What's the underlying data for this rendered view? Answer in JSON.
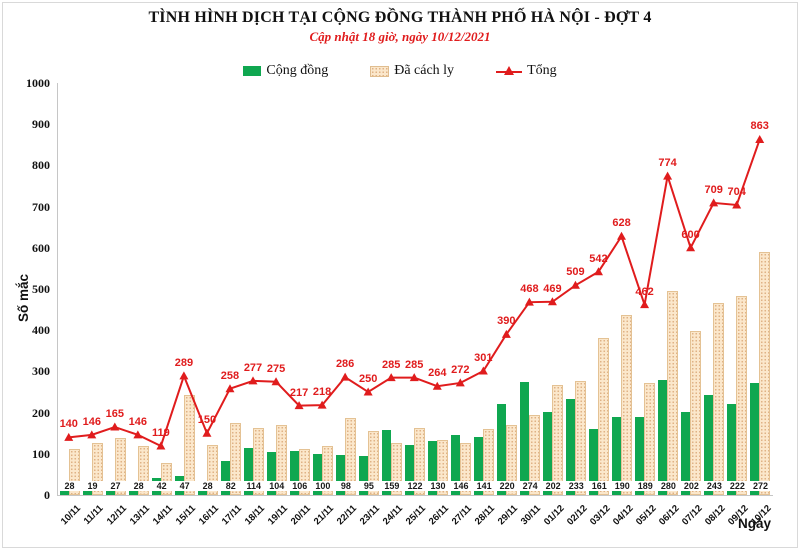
{
  "header": {
    "title": "TÌNH HÌNH DỊCH TẠI CỘNG ĐỒNG THÀNH PHỐ HÀ NỘI - ĐỢT 4",
    "subtitle": "Cập nhật 18 giờ, ngày 10/12/2021"
  },
  "legend": {
    "items": [
      {
        "label": "Cộng đồng",
        "marker": "green-square"
      },
      {
        "label": "Đã cách ly",
        "marker": "tan-pattern-square"
      },
      {
        "label": "Tổng",
        "marker": "red-line-triangle"
      }
    ],
    "position": "top-center"
  },
  "colors": {
    "red_line": "#e01c1d",
    "green_bar": "#0fa750",
    "tan_bar_fill": "#fbe7cb",
    "tan_bar_dot": "#dfb285",
    "tan_bar_border": "#e4c294",
    "axis_line": "#c6c6c6",
    "text": "#111111"
  },
  "chart_data": {
    "type": "bar",
    "subtype": "grouped-bars-with-line",
    "title": "TÌNH HÌNH DỊCH TẠI CỘNG ĐỒNG THÀNH PHỐ HÀ NỘI - ĐỢT 4",
    "subtitle": "Cập nhật 18 giờ, ngày 10/12/2021",
    "xlabel": "Ngày",
    "ylabel": "Số mắc",
    "ylim": [
      0,
      1000
    ],
    "yticks": [
      0,
      100,
      200,
      300,
      400,
      500,
      600,
      700,
      800,
      900,
      1000
    ],
    "grid": false,
    "legend_position": "top",
    "categories": [
      "10/11",
      "11/11",
      "12/11",
      "13/11",
      "14/11",
      "15/11",
      "16/11",
      "17/11",
      "18/11",
      "19/11",
      "20/11",
      "21/11",
      "22/11",
      "23/11",
      "24/11",
      "25/11",
      "26/11",
      "27/11",
      "28/11",
      "29/11",
      "30/11",
      "01/12",
      "02/12",
      "03/12",
      "04/12",
      "05/12",
      "06/12",
      "07/12",
      "08/12",
      "09/12",
      "10/12"
    ],
    "series": [
      {
        "name": "Cộng đồng",
        "type": "bar",
        "color": "#0fa750",
        "labels_shown": true,
        "values": [
          28,
          19,
          27,
          28,
          42,
          47,
          28,
          82,
          114,
          104,
          106,
          100,
          98,
          95,
          159,
          122,
          130,
          146,
          141,
          220,
          274,
          202,
          233,
          161,
          190,
          189,
          280,
          202,
          243,
          222,
          272
        ]
      },
      {
        "name": "Đã cách ly",
        "type": "bar",
        "color": "#fbe7cb",
        "labels_shown": false,
        "values": [
          112,
          127,
          138,
          118,
          77,
          242,
          122,
          176,
          163,
          171,
          111,
          118,
          188,
          155,
          126,
          163,
          134,
          126,
          160,
          170,
          194,
          267,
          276,
          381,
          438,
          273,
          494,
          398,
          466,
          482,
          591
        ]
      },
      {
        "name": "Tổng",
        "type": "line",
        "color": "#e01c1d",
        "marker": "triangle-up",
        "labels_shown": true,
        "values": [
          140,
          146,
          165,
          146,
          119,
          289,
          150,
          258,
          277,
          275,
          217,
          218,
          286,
          250,
          285,
          285,
          264,
          272,
          301,
          390,
          468,
          469,
          509,
          542,
          628,
          462,
          774,
          600,
          709,
          704,
          863
        ]
      }
    ]
  }
}
